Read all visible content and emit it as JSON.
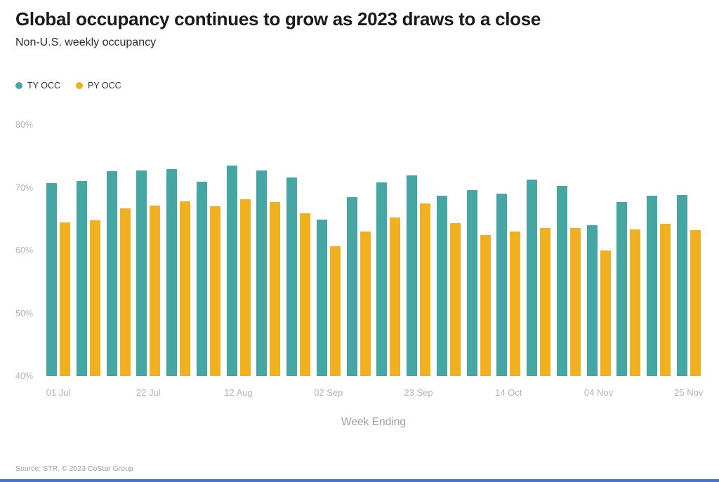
{
  "header": {
    "title": "Global occupancy continues to grow as 2023 draws to a close",
    "subtitle": "Non-U.S. weekly occupancy"
  },
  "legend": {
    "items": [
      {
        "label": "TY OCC",
        "color": "#45a6a3"
      },
      {
        "label": "PY OCC",
        "color": "#f0b01f"
      }
    ]
  },
  "chart_data": {
    "type": "bar",
    "title": "Global occupancy continues to grow as 2023 draws to a close",
    "subtitle": "Non-U.S. weekly occupancy",
    "xlabel": "Week Ending",
    "ylabel": "",
    "ylim": [
      40,
      80
    ],
    "grid": false,
    "legend_position": "top-left",
    "y_tick_labels": [
      "80%",
      "70%",
      "60%",
      "50%",
      "40%"
    ],
    "categories": [
      "01 Jul",
      "",
      "",
      "22 Jul",
      "",
      "",
      "12 Aug",
      "",
      "",
      "02 Sep",
      "",
      "",
      "23 Sep",
      "",
      "",
      "14 Oct",
      "",
      "",
      "04 Nov",
      "",
      "",
      "25 Nov"
    ],
    "series": [
      {
        "name": "TY OCC",
        "color": "#45a6a3",
        "values": [
          70.7,
          71.1,
          72.6,
          72.7,
          73.0,
          70.9,
          73.5,
          72.7,
          71.6,
          64.9,
          68.5,
          70.8,
          72.0,
          68.7,
          69.6,
          69.1,
          71.3,
          70.3,
          64.0,
          67.7,
          68.7,
          68.8
        ]
      },
      {
        "name": "PY OCC",
        "color": "#f0b01f",
        "values": [
          64.5,
          64.8,
          66.7,
          67.1,
          67.8,
          67.0,
          68.2,
          67.7,
          65.9,
          60.7,
          63.0,
          65.2,
          67.5,
          64.4,
          62.5,
          63.0,
          63.6,
          63.6,
          60.0,
          63.4,
          64.2,
          63.2
        ]
      }
    ]
  },
  "footer": {
    "source": "Source: STR. © 2023 CoStar Group",
    "accent_bar_color": "#4472c4"
  }
}
